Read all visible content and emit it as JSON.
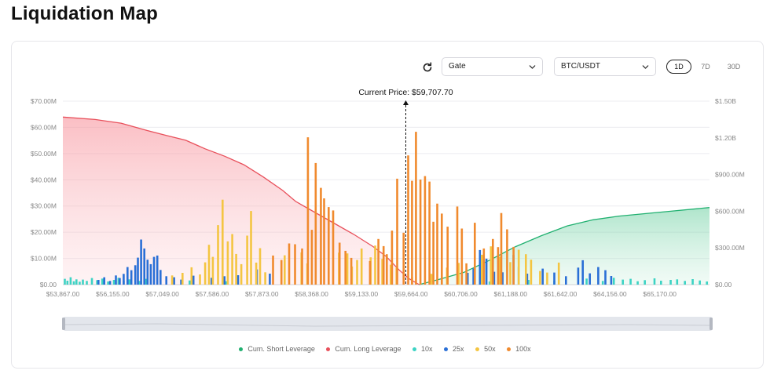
{
  "page": {
    "title": "Liquidation Map"
  },
  "controls": {
    "refresh_icon": "refresh-icon",
    "exchange": {
      "selected": "Gate"
    },
    "pair": {
      "selected": "BTC/USDT"
    },
    "ranges": [
      "1D",
      "7D",
      "30D"
    ],
    "active_range": "1D"
  },
  "colors": {
    "short": "#20b070",
    "long": "#e8505b",
    "x10": "#3cd3c4",
    "x25": "#2a6fd6",
    "x50": "#f4c542",
    "x100": "#f08a2e"
  },
  "chart_data": {
    "type": "bar",
    "current_price_label": "Current Price: $59,707.70",
    "current_price_position": 0.551,
    "x_tick_labels": [
      "$53,867.00",
      "$56,155.00",
      "$57,049.00",
      "$57,586.00",
      "$57,873.00",
      "$58,368.00",
      "$59,133.00",
      "$59,664.00",
      "$60,706.00",
      "$61,188.00",
      "$61,642.00",
      "$64,156.00",
      "$65,170.00"
    ],
    "y_left_ticks": [
      "$0.00",
      "$10.00M",
      "$20.00M",
      "$30.00M",
      "$40.00M",
      "$50.00M",
      "$60.00M",
      "$70.00M"
    ],
    "y_right_ticks": [
      "$0.00",
      "$300.00M",
      "$600.00M",
      "$900.00M",
      "$1.20B",
      "$1.50B"
    ],
    "ylim_left": [
      0,
      70
    ],
    "ylim_right": [
      0,
      1.5
    ],
    "y_units": "millions USD (bars), billions USD (cumulative)",
    "grid": true,
    "legend": [
      "Cum. Short Leverage",
      "Cum. Long Leverage",
      "10x",
      "25x",
      "50x",
      "100x"
    ],
    "legend_position": "bottom",
    "cum_long": {
      "name": "Cum. Long Leverage",
      "points": [
        [
          0,
          1.37
        ],
        [
          0.05,
          1.35
        ],
        [
          0.09,
          1.32
        ],
        [
          0.13,
          1.26
        ],
        [
          0.16,
          1.22
        ],
        [
          0.19,
          1.18
        ],
        [
          0.22,
          1.11
        ],
        [
          0.25,
          1.05
        ],
        [
          0.28,
          0.98
        ],
        [
          0.31,
          0.88
        ],
        [
          0.34,
          0.77
        ],
        [
          0.36,
          0.68
        ],
        [
          0.39,
          0.59
        ],
        [
          0.42,
          0.5
        ],
        [
          0.45,
          0.41
        ],
        [
          0.48,
          0.31
        ],
        [
          0.5,
          0.23
        ],
        [
          0.52,
          0.12
        ],
        [
          0.535,
          0.05
        ],
        [
          0.551,
          0.0
        ]
      ]
    },
    "cum_short": {
      "name": "Cum. Short Leverage",
      "points": [
        [
          0.551,
          0.0
        ],
        [
          0.58,
          0.04
        ],
        [
          0.62,
          0.1
        ],
        [
          0.66,
          0.2
        ],
        [
          0.7,
          0.31
        ],
        [
          0.74,
          0.4
        ],
        [
          0.78,
          0.48
        ],
        [
          0.82,
          0.53
        ],
        [
          0.86,
          0.56
        ],
        [
          0.9,
          0.58
        ],
        [
          0.94,
          0.6
        ],
        [
          1.0,
          0.63
        ]
      ]
    },
    "bars": {
      "10x": [
        [
          0.003,
          2.2
        ],
        [
          0.007,
          1.5
        ],
        [
          0.012,
          2.8
        ],
        [
          0.017,
          1.3
        ],
        [
          0.021,
          2.0
        ],
        [
          0.026,
          1.1
        ],
        [
          0.031,
          1.9
        ],
        [
          0.037,
          1.4
        ],
        [
          0.045,
          2.5
        ],
        [
          0.053,
          1.7
        ],
        [
          0.061,
          2.3
        ],
        [
          0.07,
          1.2
        ],
        [
          0.079,
          1.8
        ],
        [
          0.086,
          2.6
        ],
        [
          0.094,
          1.5
        ],
        [
          0.103,
          2.0
        ],
        [
          0.118,
          1.4
        ],
        [
          0.128,
          2.2
        ],
        [
          0.196,
          1.6
        ],
        [
          0.253,
          1.3
        ],
        [
          0.66,
          1.2
        ],
        [
          0.72,
          1.8
        ],
        [
          0.76,
          1.5
        ],
        [
          0.81,
          2.3
        ],
        [
          0.835,
          1.4
        ],
        [
          0.852,
          2.6
        ],
        [
          0.866,
          1.9
        ],
        [
          0.878,
          2.2
        ],
        [
          0.889,
          1.3
        ],
        [
          0.9,
          1.7
        ],
        [
          0.915,
          2.4
        ],
        [
          0.925,
          1.5
        ],
        [
          0.94,
          1.8
        ],
        [
          0.95,
          2.0
        ],
        [
          0.962,
          1.4
        ],
        [
          0.974,
          2.1
        ],
        [
          0.985,
          1.6
        ],
        [
          0.996,
          1.2
        ]
      ],
      "25x": [
        [
          0.055,
          1.8
        ],
        [
          0.064,
          2.8
        ],
        [
          0.073,
          1.4
        ],
        [
          0.082,
          3.5
        ],
        [
          0.088,
          2.5
        ],
        [
          0.094,
          4.1
        ],
        [
          0.1,
          6.7
        ],
        [
          0.106,
          5.5
        ],
        [
          0.112,
          7.4
        ],
        [
          0.116,
          10.3
        ],
        [
          0.121,
          17.2
        ],
        [
          0.126,
          13.8
        ],
        [
          0.131,
          9.5
        ],
        [
          0.136,
          7.8
        ],
        [
          0.141,
          10.6
        ],
        [
          0.146,
          11.1
        ],
        [
          0.151,
          5.6
        ],
        [
          0.16,
          3.2
        ],
        [
          0.172,
          2.8
        ],
        [
          0.183,
          1.9
        ],
        [
          0.202,
          3.4
        ],
        [
          0.23,
          2.6
        ],
        [
          0.25,
          3.2
        ],
        [
          0.271,
          3.6
        ],
        [
          0.3,
          5.8
        ],
        [
          0.32,
          4.2
        ],
        [
          0.626,
          4.5
        ],
        [
          0.635,
          6.2
        ],
        [
          0.645,
          13.2
        ],
        [
          0.655,
          9.9
        ],
        [
          0.667,
          4.9
        ],
        [
          0.68,
          4.7
        ],
        [
          0.697,
          11.3
        ],
        [
          0.705,
          6.8
        ],
        [
          0.718,
          4.2
        ],
        [
          0.742,
          6.1
        ],
        [
          0.76,
          4.6
        ],
        [
          0.778,
          3.2
        ],
        [
          0.797,
          6.5
        ],
        [
          0.804,
          9.3
        ],
        [
          0.815,
          4.3
        ],
        [
          0.828,
          6.7
        ],
        [
          0.839,
          5.5
        ],
        [
          0.848,
          3.3
        ]
      ],
      "50x": [
        [
          0.169,
          3.5
        ],
        [
          0.185,
          4.5
        ],
        [
          0.199,
          6.6
        ],
        [
          0.212,
          3.9
        ],
        [
          0.22,
          8.5
        ],
        [
          0.226,
          15.2
        ],
        [
          0.232,
          10.6
        ],
        [
          0.24,
          22.7
        ],
        [
          0.247,
          32.4
        ],
        [
          0.255,
          16.5
        ],
        [
          0.262,
          19.3
        ],
        [
          0.268,
          11.7
        ],
        [
          0.276,
          7.8
        ],
        [
          0.285,
          18.7
        ],
        [
          0.291,
          28.1
        ],
        [
          0.299,
          8.4
        ],
        [
          0.305,
          13.9
        ],
        [
          0.313,
          4.7
        ],
        [
          0.343,
          11.2
        ],
        [
          0.369,
          12.3
        ],
        [
          0.378,
          8.1
        ],
        [
          0.399,
          9.7
        ],
        [
          0.427,
          12.2
        ],
        [
          0.44,
          11.9
        ],
        [
          0.447,
          6.9
        ],
        [
          0.455,
          9.4
        ],
        [
          0.462,
          13.8
        ],
        [
          0.476,
          10.4
        ],
        [
          0.483,
          14.9
        ],
        [
          0.494,
          9.8
        ],
        [
          0.507,
          7.6
        ],
        [
          0.516,
          6.5
        ],
        [
          0.54,
          2.8
        ],
        [
          0.57,
          4.1
        ],
        [
          0.594,
          6.5
        ],
        [
          0.612,
          8.3
        ],
        [
          0.648,
          11.4
        ],
        [
          0.662,
          14.6
        ],
        [
          0.676,
          10.6
        ],
        [
          0.692,
          8.6
        ],
        [
          0.705,
          13.3
        ],
        [
          0.716,
          11.6
        ],
        [
          0.724,
          9.5
        ],
        [
          0.738,
          5.2
        ],
        [
          0.749,
          4.6
        ],
        [
          0.767,
          8.4
        ]
      ],
      "100x": [
        [
          0.325,
          11.1
        ],
        [
          0.338,
          9.4
        ],
        [
          0.35,
          15.7
        ],
        [
          0.359,
          15.4
        ],
        [
          0.37,
          13.8
        ],
        [
          0.379,
          56.2
        ],
        [
          0.385,
          20.9
        ],
        [
          0.391,
          46.4
        ],
        [
          0.399,
          36.9
        ],
        [
          0.404,
          32.9
        ],
        [
          0.411,
          29.6
        ],
        [
          0.418,
          28.3
        ],
        [
          0.428,
          16.0
        ],
        [
          0.437,
          12.9
        ],
        [
          0.446,
          10.2
        ],
        [
          0.475,
          9.0
        ],
        [
          0.488,
          17.4
        ],
        [
          0.496,
          14.7
        ],
        [
          0.501,
          11.6
        ],
        [
          0.509,
          20.6
        ],
        [
          0.517,
          40.4
        ],
        [
          0.527,
          19.8
        ],
        [
          0.534,
          49.3
        ],
        [
          0.54,
          39.6
        ],
        [
          0.546,
          58.3
        ],
        [
          0.553,
          40.1
        ],
        [
          0.56,
          41.4
        ],
        [
          0.567,
          39.3
        ],
        [
          0.573,
          24.0
        ],
        [
          0.579,
          30.9
        ],
        [
          0.586,
          27.1
        ],
        [
          0.595,
          22.1
        ],
        [
          0.61,
          29.8
        ],
        [
          0.617,
          21.4
        ],
        [
          0.624,
          8.1
        ],
        [
          0.637,
          23.6
        ],
        [
          0.651,
          13.8
        ],
        [
          0.665,
          17.4
        ],
        [
          0.673,
          14.3
        ],
        [
          0.678,
          27.3
        ],
        [
          0.687,
          21.1
        ],
        [
          0.697,
          14.4
        ]
      ]
    }
  },
  "legend_labels": {
    "short": "Cum. Short Leverage",
    "long": "Cum. Long Leverage",
    "x10": "10x",
    "x25": "25x",
    "x50": "50x",
    "x100": "100x"
  }
}
